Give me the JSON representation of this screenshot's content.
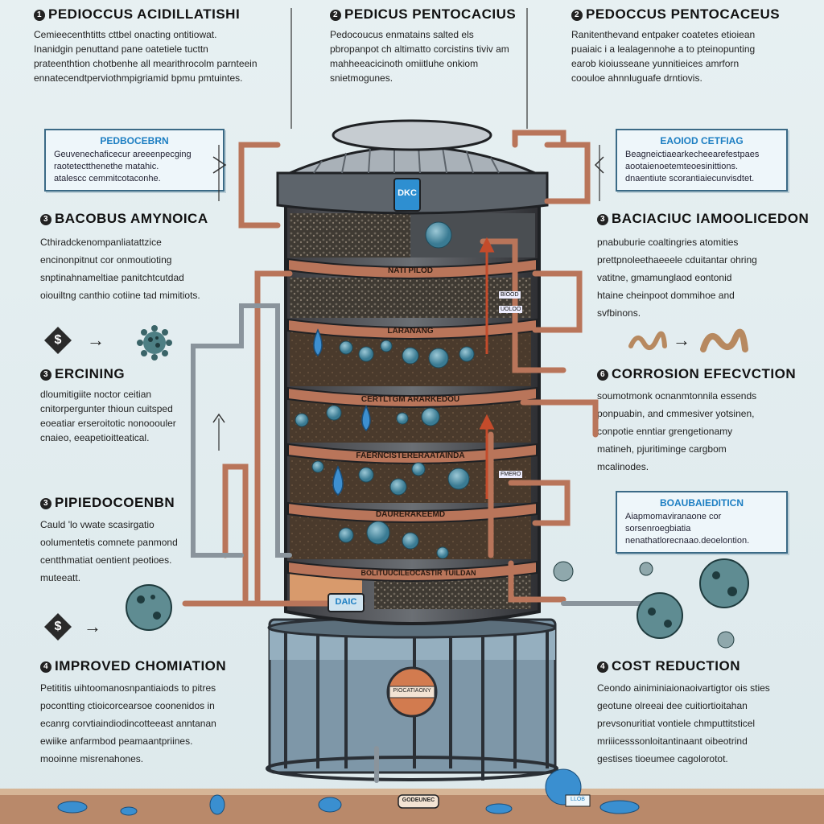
{
  "sections": {
    "top_left": {
      "num": "1",
      "title": "PEDIOCCUS ACIDILLATISHI",
      "text": [
        "Cemieecenthtitts cttbel onacting ontitiowat.",
        "Inanidgin penuttand pane oatetiele tucttn",
        "prateenthtion chotbenhe all mearithrocolm parnteein",
        "ennatecendtperviothmpigriamid bpmu pmtuintes."
      ]
    },
    "top_mid": {
      "num": "2",
      "title": "PEDICUS PENTOCACIUS",
      "text": [
        "Pedocoucus enmatains salted els",
        "pbropanpot ch altimatto corcistins tiviv am",
        "mahheeacicinoth omiitluhe onkiom",
        "snietmogunes."
      ]
    },
    "top_right": {
      "num": "2",
      "title": "PEDOCCUS PENTOCACEUS",
      "text": [
        "Ranitenthevand entpaker coatetes etioiean",
        "puaiaic i a lealagennohe a to pteinopunting",
        "earob kioiusseane yunnitieices amrforn",
        "coouloe ahnnluguafe drntiovis."
      ]
    },
    "left_callout": {
      "title": "PEDBOCEBRN",
      "text": [
        "Geuvenechaficecur areeenpecging",
        "raotetectthenethe matahic.",
        "atalescc cemmitcotaconhe."
      ]
    },
    "right_callout": {
      "title": "EAOIOD CETFIAG",
      "text": [
        "Beagneictiaearkecheearefestpaes",
        "aootaienoetemteoesinittions.",
        "dnaentiute scorantiaiecunvisdtet."
      ]
    },
    "mid_left": {
      "num": "3",
      "title": "BACOBUS AMYNOICA",
      "text": [
        "Cthiradckenompanliatattzice",
        "encinonpitnut cor onmoutioting",
        "snptinahnameltiae panitchtcutdad",
        "oiouiltng canthio cotiine tad mimitiots."
      ]
    },
    "mid_right": {
      "num": "3",
      "title": "BACIACIUC IAMOOLICEDON",
      "text": [
        "pnabuburie coaltingries atomities",
        "prettpnoleethaeeele cduitantar ohring",
        "vatitne, gmamunglaod eontonid",
        "htaine cheinpoot dommihoe and",
        "svfbinons."
      ]
    },
    "left_3": {
      "num": "3",
      "title": "ERCINING",
      "text": [
        "dloumitigiite noctor ceitian",
        "cnitorpergunter thioun cuitsped",
        "eoeatiar erseroitotic nonooouler",
        "cnaieo, eeapetioitteatical."
      ]
    },
    "right_6": {
      "num": "6",
      "title": "CORROSION EFECVCTION",
      "text": [
        "soumotmonk ocnanmtonnila essends",
        "ponpuabin, and cmmesiver yotsinen,",
        "conpotie enntiar grengetionamy",
        "matineh, pjuritiminge cargbom",
        "mcalinodes."
      ]
    },
    "left_pip": {
      "num": "3",
      "title": "PIPIEDOCOENBN",
      "text": [
        "Cauld 'lo vwate scasirgatio",
        "oolumentetis comnete panmond",
        "centthmatiat oentient peotioes.",
        "muteeatt."
      ]
    },
    "right_callout2": {
      "title": "BOAUBAIEDITICN",
      "text": [
        "Aiapmomaviranaone cor sorsenroegbiatia",
        "nenathatlorecnaao.deoelontion."
      ]
    },
    "bottom_left": {
      "num": "4",
      "title": "IMPROVED CHOMIATION",
      "text": [
        "Petititis uihtoomanosnpantiaiods to pitres",
        "pocontting ctioicorcearsoe coonenidos in",
        "ecanrg corvtiaindiodincotteeast anntanan",
        "ewiike anfarmbod peamaantpriines.",
        "mooinne misrenahones."
      ]
    },
    "bottom_right": {
      "num": "4",
      "title": "COST REDUCTION",
      "text": [
        "Ceondo ainiminiaionaoivartigtor ois sties",
        "geotune olreeai dee cuitiortioitahan",
        "prevsonuritiat vontiele chmputtitsticel",
        "mriiicesssonloitantinaant oibeotrind",
        "gestises tioeumee cagolorotot."
      ]
    },
    "tank": {
      "logo": "DKC",
      "base_logo": "DAIC",
      "layers": [
        "NATI PILOD",
        "LARANANG",
        "CERTLTGM ARARKEDOU",
        "FAERNCISTERERAATAINDA",
        "DAURERAKEEMD",
        "BOLITUUCILEOCASTIR TUILDAN"
      ],
      "side_tags": [
        "BIOOD",
        "UOLOO",
        "FMERO"
      ],
      "valve_label": "PIOCATIAONY",
      "ground_label": "GODEUNEC",
      "ground_tag": "LLOB"
    },
    "symbols": {
      "dollar": "$",
      "arrow": "→"
    }
  }
}
